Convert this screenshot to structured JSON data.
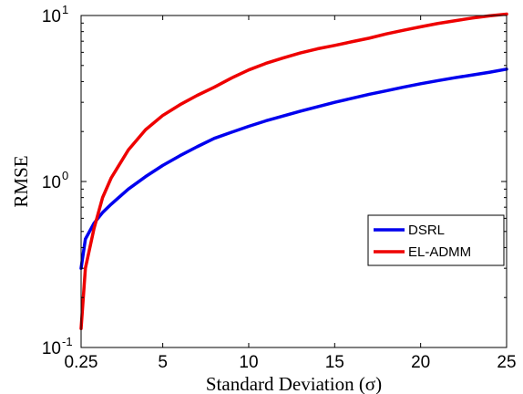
{
  "chart_data": {
    "type": "line",
    "xlabel": "Standard Deviation (σ)",
    "ylabel": "RMSE",
    "xlim": [
      0.25,
      25
    ],
    "ylim": [
      0.1,
      10
    ],
    "yscale": "log",
    "grid": false,
    "legend_position": "center-right",
    "x_ticks": [
      0.25,
      5,
      10,
      15,
      20,
      25
    ],
    "x_tick_labels": [
      "0.25",
      "5",
      "10",
      "15",
      "20",
      "25"
    ],
    "y_ticks": [
      {
        "value": 0.1,
        "base": "10",
        "exp": "-1"
      },
      {
        "value": 1,
        "base": "10",
        "exp": "0"
      },
      {
        "value": 10,
        "base": "10",
        "exp": "1"
      }
    ],
    "series": [
      {
        "name": "DSRL",
        "color": "#0000ee",
        "x": [
          0.25,
          0.5,
          1.0,
          1.5,
          2.0,
          3,
          4,
          5,
          6,
          7,
          8,
          9,
          10,
          11,
          12,
          13,
          14,
          15,
          16,
          17,
          18,
          19,
          20,
          21,
          22,
          23,
          24,
          25
        ],
        "y": [
          0.3,
          0.45,
          0.56,
          0.65,
          0.73,
          0.9,
          1.07,
          1.25,
          1.43,
          1.62,
          1.82,
          1.98,
          2.15,
          2.32,
          2.48,
          2.65,
          2.82,
          3.0,
          3.17,
          3.35,
          3.52,
          3.7,
          3.88,
          4.05,
          4.22,
          4.38,
          4.55,
          4.75
        ]
      },
      {
        "name": "EL-ADMM",
        "color": "#ee0000",
        "x": [
          0.25,
          0.5,
          1.0,
          1.5,
          2.0,
          3,
          4,
          5,
          6,
          7,
          8,
          9,
          10,
          11,
          12,
          13,
          14,
          15,
          16,
          17,
          18,
          19,
          20,
          21,
          22,
          23,
          24,
          25
        ],
        "y": [
          0.13,
          0.3,
          0.52,
          0.8,
          1.05,
          1.55,
          2.05,
          2.5,
          2.9,
          3.3,
          3.7,
          4.2,
          4.7,
          5.15,
          5.55,
          5.95,
          6.3,
          6.6,
          6.95,
          7.3,
          7.75,
          8.15,
          8.55,
          8.95,
          9.3,
          9.65,
          9.95,
          10.2
        ]
      }
    ]
  }
}
